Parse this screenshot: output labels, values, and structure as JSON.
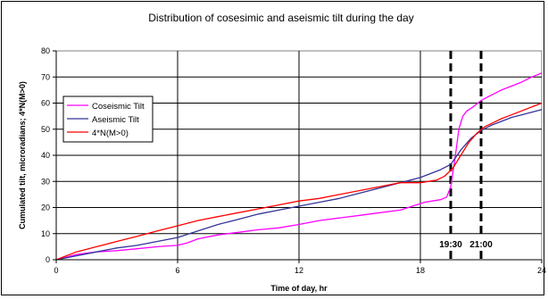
{
  "chart_data": {
    "type": "line",
    "title": "Distribution of cosesimic and aseismic tilt during the day",
    "xlabel": "Time of day, hr",
    "ylabel": "Cumulated tilt, microradians;  4*N(M>0)",
    "xlim": [
      0,
      24
    ],
    "ylim": [
      0,
      80
    ],
    "xticks": [
      0,
      6,
      12,
      18,
      24
    ],
    "yticks": [
      0,
      10,
      20,
      30,
      40,
      50,
      60,
      70,
      80
    ],
    "grid": true,
    "legend_position": "upper-left",
    "series": [
      {
        "name": "Coseismic Tilt",
        "color": "#ff00ff",
        "x": [
          0,
          0.5,
          1,
          2,
          3,
          4,
          5,
          6,
          6.5,
          7,
          8,
          9,
          10,
          11,
          12,
          13,
          14,
          15,
          16,
          17,
          17.8,
          18.2,
          18.6,
          19,
          19.3,
          19.5,
          19.7,
          19.9,
          20.1,
          20.3,
          20.6,
          21,
          21.5,
          22,
          22.5,
          23,
          23.5,
          24
        ],
        "values": [
          0,
          1,
          2,
          3,
          3.5,
          4.2,
          5,
          5.5,
          6.5,
          8,
          9.5,
          10.5,
          11.5,
          12.2,
          13.5,
          15,
          16,
          17,
          18,
          19,
          21,
          22,
          22.5,
          23,
          24,
          28,
          38,
          50,
          55,
          57,
          58.5,
          61,
          63,
          65,
          66.5,
          68,
          70,
          71.5
        ]
      },
      {
        "name": "Aseismic Tilt",
        "color": "#333399",
        "x": [
          0,
          1,
          2,
          3,
          4,
          5,
          6,
          7,
          8,
          9,
          10,
          11,
          12,
          13,
          14,
          15,
          16,
          17,
          18,
          19,
          19.5,
          20,
          20.5,
          21,
          21.5,
          22,
          22.5,
          23,
          23.5,
          24
        ],
        "values": [
          0,
          1.5,
          3,
          4.5,
          5.5,
          7,
          8.5,
          11,
          13.5,
          15.5,
          17.5,
          19,
          20.5,
          22,
          23.5,
          25.5,
          27.5,
          29.5,
          31.5,
          34.5,
          36.5,
          42,
          46.5,
          49.5,
          51.5,
          53,
          54.5,
          55.5,
          56.5,
          57.5
        ]
      },
      {
        "name": "4*N(M>0)",
        "color": "#ff0000",
        "x": [
          0,
          1,
          2,
          3,
          4,
          5,
          6,
          7,
          8,
          9,
          10,
          11,
          12,
          13,
          14,
          15,
          16,
          17,
          18,
          18.8,
          19.2,
          19.6,
          20,
          20.4,
          20.8,
          21.2,
          21.6,
          22,
          22.5,
          23,
          23.5,
          24
        ],
        "values": [
          0,
          3,
          5,
          7,
          9,
          11,
          13,
          15,
          16.5,
          18,
          19.5,
          21,
          22.5,
          23.5,
          25,
          26.5,
          28,
          29.5,
          29.5,
          30.5,
          32,
          35,
          40,
          45,
          48.5,
          51,
          52.5,
          54,
          55.5,
          57,
          58.5,
          60
        ]
      }
    ],
    "annotations": [
      {
        "label": "19:30",
        "x": 19.5
      },
      {
        "label": "21:00",
        "x": 21
      }
    ]
  }
}
